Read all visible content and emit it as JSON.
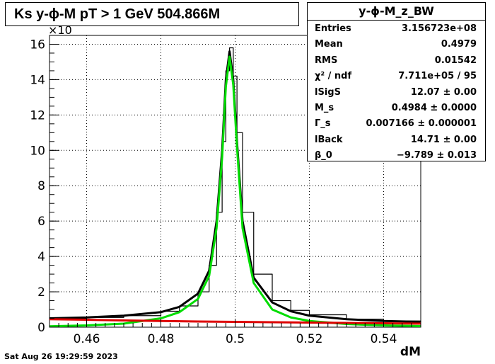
{
  "title": "Ks y-ϕ-M pT > 1 GeV  504.866M",
  "timestamp": "Sat Aug 26 19:29:59 2023",
  "stats": {
    "name": "y-ϕ-M_z_BW",
    "rows": [
      {
        "key": "Entries",
        "value": "3.156723e+08"
      },
      {
        "key": "Mean",
        "value": "0.4979"
      },
      {
        "key": "RMS",
        "value": "0.01542"
      },
      {
        "key": "χ² / ndf",
        "value": "7.711e+05 / 95"
      },
      {
        "key": "lSigS",
        "value": "12.07 ± 0.00"
      },
      {
        "key": "M_s",
        "value": "0.4984 ± 0.0000"
      },
      {
        "key": "Γ_s",
        "value": "0.007166 ± 0.000001"
      },
      {
        "key": "lBack",
        "value": "14.71 ± 0.00"
      },
      {
        "key": "β_0",
        "value": "−9.789 ± 0.013"
      }
    ]
  },
  "chart_data": {
    "type": "line",
    "xlabel": "dM",
    "ylabel": "",
    "y_multiplier_label": "×10",
    "xlim": [
      0.45,
      0.55
    ],
    "ylim": [
      0,
      16.5
    ],
    "xticks": [
      "0.46",
      "0.48",
      "0.5",
      "0.52",
      "0.54"
    ],
    "yticks": [
      "0",
      "2",
      "4",
      "6",
      "8",
      "10",
      "12",
      "14",
      "16"
    ],
    "grid": true,
    "series": [
      {
        "role": "data histogram",
        "color": "#000000",
        "x": [
          0.45,
          0.46,
          0.47,
          0.48,
          0.485,
          0.49,
          0.493,
          0.495,
          0.4965,
          0.4975,
          0.4985,
          0.4995,
          0.5005,
          0.502,
          0.505,
          0.51,
          0.515,
          0.52,
          0.53,
          0.54,
          0.55
        ],
        "y": [
          0.5,
          0.55,
          0.65,
          0.9,
          1.2,
          2.0,
          3.5,
          6.5,
          10.5,
          14.5,
          15.8,
          14.2,
          11.0,
          6.5,
          3.0,
          1.5,
          0.95,
          0.7,
          0.45,
          0.35,
          0.3
        ]
      },
      {
        "role": "total fit",
        "color": "#000000",
        "x": [
          0.45,
          0.46,
          0.47,
          0.48,
          0.485,
          0.49,
          0.493,
          0.495,
          0.4965,
          0.4975,
          0.4985,
          0.4995,
          0.5005,
          0.502,
          0.505,
          0.51,
          0.515,
          0.52,
          0.53,
          0.54,
          0.55
        ],
        "y": [
          0.5,
          0.55,
          0.65,
          0.85,
          1.15,
          1.9,
          3.2,
          6.0,
          10.0,
          14.0,
          15.6,
          14.0,
          10.5,
          6.0,
          2.8,
          1.4,
          0.9,
          0.65,
          0.45,
          0.35,
          0.3
        ]
      },
      {
        "role": "signal",
        "color": "#00dd00",
        "x": [
          0.45,
          0.46,
          0.47,
          0.48,
          0.485,
          0.49,
          0.493,
          0.495,
          0.4965,
          0.4975,
          0.4985,
          0.4995,
          0.5005,
          0.502,
          0.505,
          0.51,
          0.515,
          0.52,
          0.53,
          0.54,
          0.55
        ],
        "y": [
          0.05,
          0.1,
          0.2,
          0.5,
          0.85,
          1.6,
          2.9,
          5.6,
          9.6,
          13.6,
          15.3,
          13.7,
          10.2,
          5.6,
          2.5,
          1.0,
          0.55,
          0.35,
          0.18,
          0.1,
          0.06
        ]
      },
      {
        "role": "background",
        "color": "#dd0000",
        "x": [
          0.45,
          0.46,
          0.47,
          0.48,
          0.49,
          0.5,
          0.51,
          0.52,
          0.53,
          0.54,
          0.55
        ],
        "y": [
          0.45,
          0.42,
          0.38,
          0.35,
          0.32,
          0.3,
          0.28,
          0.26,
          0.24,
          0.22,
          0.2
        ]
      }
    ]
  }
}
